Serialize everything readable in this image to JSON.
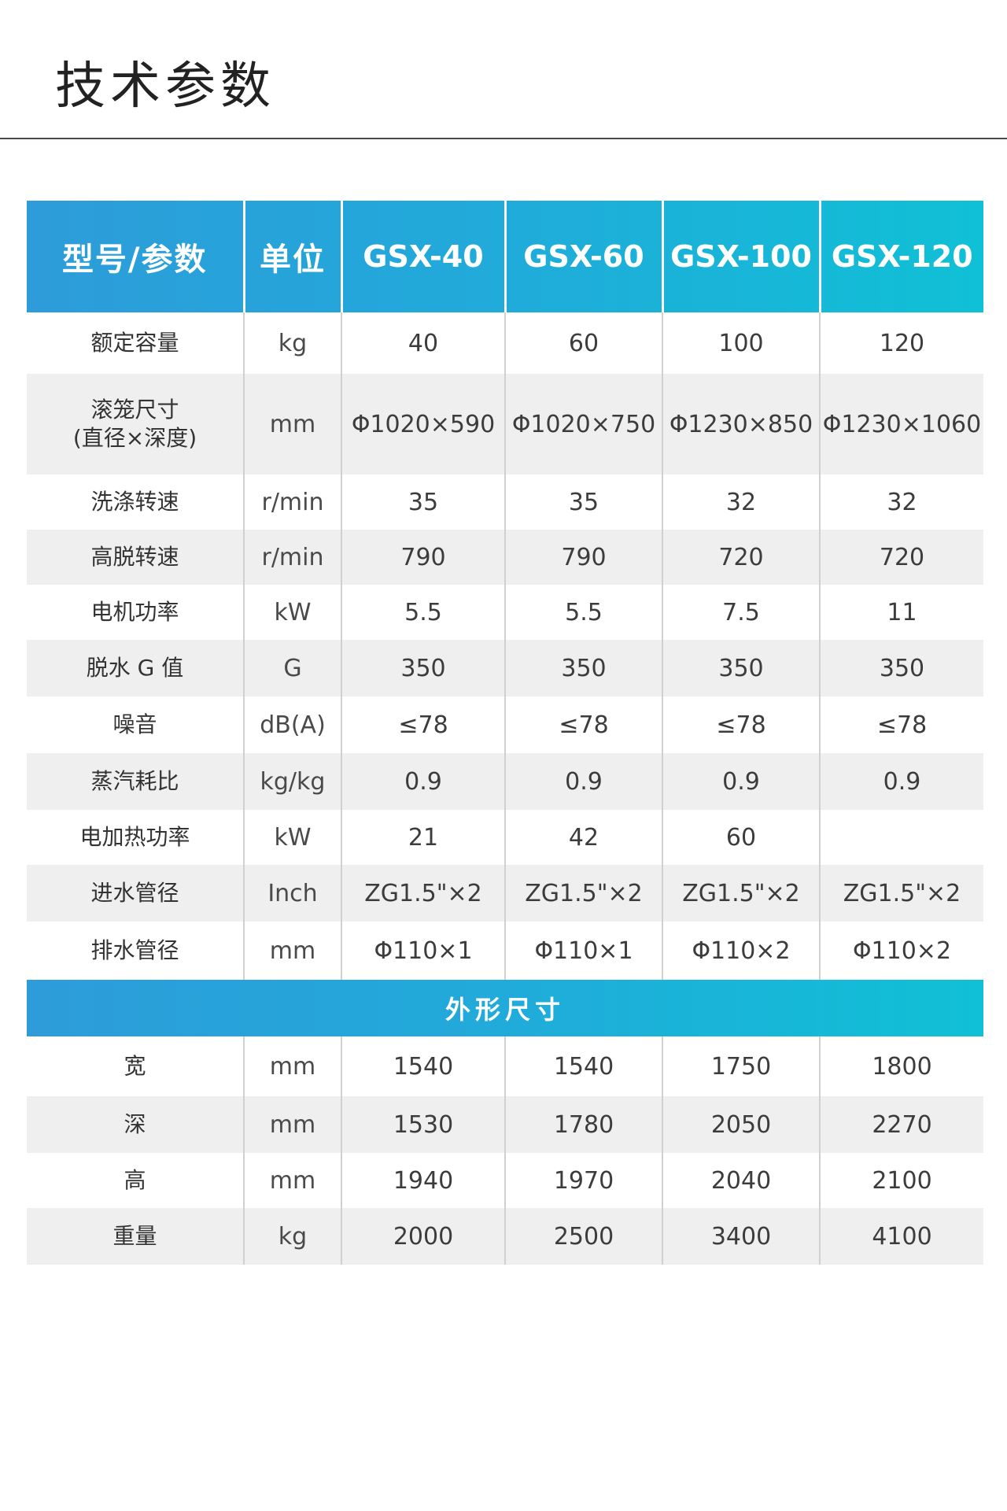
{
  "page": {
    "title": "技术参数"
  },
  "table": {
    "headers": {
      "param": "型号/参数",
      "unit": "单位",
      "models": [
        "GSX-40",
        "GSX-60",
        "GSX-100",
        "GSX-120"
      ]
    },
    "rows": [
      {
        "name": "额定容量",
        "unit": "kg",
        "values": [
          "40",
          "60",
          "100",
          "120"
        ]
      },
      {
        "name": "滚笼尺寸\n(直径×深度)",
        "unit": "mm",
        "values": [
          "Φ1020×590",
          "Φ1020×750",
          "Φ1230×850",
          "Φ1230×1060"
        ]
      },
      {
        "name": "洗涤转速",
        "unit": "r/min",
        "values": [
          "35",
          "35",
          "32",
          "32"
        ]
      },
      {
        "name": "高脱转速",
        "unit": "r/min",
        "values": [
          "790",
          "790",
          "720",
          "720"
        ]
      },
      {
        "name": "电机功率",
        "unit": "kW",
        "values": [
          "5.5",
          "5.5",
          "7.5",
          "11"
        ]
      },
      {
        "name": "脱水 G 值",
        "unit": "G",
        "values": [
          "350",
          "350",
          "350",
          "350"
        ]
      },
      {
        "name": "噪音",
        "unit": "dB(A)",
        "values": [
          "≤78",
          "≤78",
          "≤78",
          "≤78"
        ]
      },
      {
        "name": "蒸汽耗比",
        "unit": "kg/kg",
        "values": [
          "0.9",
          "0.9",
          "0.9",
          "0.9"
        ]
      },
      {
        "name": "电加热功率",
        "unit": "kW",
        "values": [
          "21",
          "42",
          "60",
          ""
        ]
      },
      {
        "name": "进水管径",
        "unit": "Inch",
        "values": [
          "ZG1.5\"×2",
          "ZG1.5\"×2",
          "ZG1.5\"×2",
          "ZG1.5\"×2"
        ]
      },
      {
        "name": "排水管径",
        "unit": "mm",
        "values": [
          "Φ110×1",
          "Φ110×1",
          "Φ110×2",
          "Φ110×2"
        ]
      }
    ],
    "section_title": "外形尺寸",
    "dimension_rows": [
      {
        "name": "宽",
        "unit": "mm",
        "values": [
          "1540",
          "1540",
          "1750",
          "1800"
        ]
      },
      {
        "name": "深",
        "unit": "mm",
        "values": [
          "1530",
          "1780",
          "2050",
          "2270"
        ]
      },
      {
        "name": "高",
        "unit": "mm",
        "values": [
          "1940",
          "1970",
          "2040",
          "2100"
        ]
      },
      {
        "name": "重量",
        "unit": "kg",
        "values": [
          "2000",
          "2500",
          "3400",
          "4100"
        ]
      }
    ]
  }
}
